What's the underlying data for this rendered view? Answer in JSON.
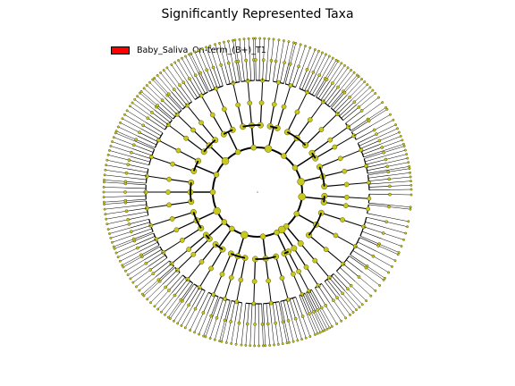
{
  "title": "Significantly Represented Taxa",
  "legend": {
    "label": "Baby_Saliva_On-term_(B+)_T1",
    "color": "#ff0000"
  },
  "colors": {
    "node_fill": "#c8c81e",
    "node_stroke": "#555500",
    "line": "#000000",
    "background": "#ffffff"
  },
  "cladogram": {
    "clades": [
      {
        "span": 12,
        "leaves": 4,
        "subs": 2
      },
      {
        "span": 34,
        "leaves": 16,
        "subs": 3
      },
      {
        "span": 8,
        "leaves": 5,
        "subs": 1
      },
      {
        "span": 6,
        "leaves": 3,
        "subs": 1
      },
      {
        "span": 9,
        "leaves": 8,
        "subs": 2
      },
      {
        "span": 28,
        "leaves": 18,
        "subs": 3
      },
      {
        "span": 20,
        "leaves": 12,
        "subs": 3
      },
      {
        "span": 16,
        "leaves": 10,
        "subs": 2
      },
      {
        "span": 10,
        "leaves": 6,
        "subs": 2
      },
      {
        "span": 24,
        "leaves": 14,
        "subs": 3
      },
      {
        "span": 26,
        "leaves": 16,
        "subs": 3
      },
      {
        "span": 20,
        "leaves": 12,
        "subs": 2
      },
      {
        "span": 22,
        "leaves": 14,
        "subs": 3
      },
      {
        "span": 18,
        "leaves": 12,
        "subs": 2
      },
      {
        "span": 24,
        "leaves": 16,
        "subs": 3
      },
      {
        "span": 14,
        "leaves": 8,
        "subs": 2
      },
      {
        "span": 30,
        "leaves": 20,
        "subs": 3
      },
      {
        "span": 12,
        "leaves": 6,
        "subs": 2
      },
      {
        "span": 27,
        "leaves": 18,
        "subs": 3
      }
    ]
  }
}
